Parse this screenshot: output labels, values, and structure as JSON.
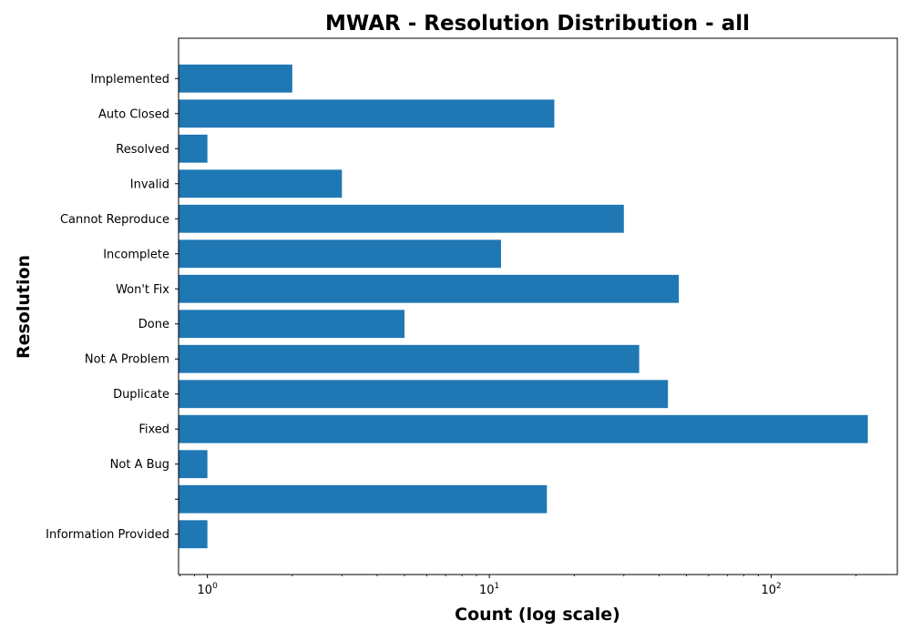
{
  "chart_data": {
    "type": "bar",
    "orientation": "horizontal",
    "title": "MWAR - Resolution Distribution - all",
    "xlabel": "Count (log scale)",
    "ylabel": "Resolution",
    "xscale": "log",
    "xlim": [
      0.79,
      280
    ],
    "xticks": [
      {
        "value": 1,
        "base": "10",
        "exp": "0"
      },
      {
        "value": 10,
        "base": "10",
        "exp": "1"
      },
      {
        "value": 100,
        "base": "10",
        "exp": "2"
      }
    ],
    "grid": false,
    "bar_color": "#1f77b4",
    "categories": [
      "Information Provided",
      "",
      "Not A Bug",
      "Fixed",
      "Duplicate",
      "Not A Problem",
      "Done",
      "Won't Fix",
      "Incomplete",
      "Cannot Reproduce",
      "Invalid",
      "Resolved",
      "Auto Closed",
      "Implemented"
    ],
    "values": [
      1,
      16,
      1,
      220,
      43,
      34,
      5,
      47,
      11,
      30,
      3,
      1,
      17,
      2
    ]
  }
}
